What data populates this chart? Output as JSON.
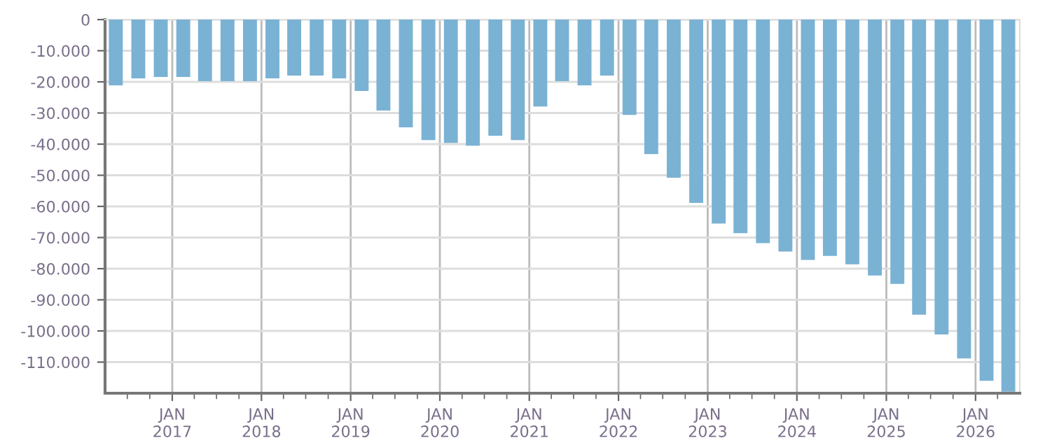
{
  "chart_data": {
    "type": "bar",
    "x": [
      "2016-05-15",
      "2016-08-15",
      "2016-11-15",
      "2017-02-15",
      "2017-05-15",
      "2017-08-15",
      "2017-11-15",
      "2018-02-15",
      "2018-05-15",
      "2018-08-15",
      "2018-11-15",
      "2019-02-15",
      "2019-05-15",
      "2019-08-15",
      "2019-11-15",
      "2020-02-15",
      "2020-05-15",
      "2020-08-15",
      "2020-11-15",
      "2021-02-15",
      "2021-05-15",
      "2021-08-15",
      "2021-11-15",
      "2022-02-15",
      "2022-05-15",
      "2022-08-15",
      "2022-11-15",
      "2023-02-15",
      "2023-05-15",
      "2023-08-15",
      "2023-11-15",
      "2024-02-15",
      "2024-05-15",
      "2024-08-15",
      "2024-11-15",
      "2025-02-15",
      "2025-05-15",
      "2025-08-15",
      "2025-11-15",
      "2026-02-15",
      "2026-05-15"
    ],
    "values": [
      -21100,
      -18900,
      -18400,
      -18400,
      -19800,
      -19800,
      -19800,
      -18900,
      -18000,
      -18000,
      -18900,
      -22900,
      -29200,
      -34600,
      -38700,
      -39600,
      -40500,
      -37300,
      -38700,
      -27900,
      -19800,
      -21100,
      -18000,
      -30600,
      -43200,
      -50800,
      -58900,
      -65500,
      -68600,
      -71800,
      -74500,
      -77200,
      -75900,
      -78600,
      -82200,
      -84900,
      -94800,
      -101100,
      -108800,
      -116000,
      -119500
    ],
    "color": "#7ab2d4",
    "xlim": [
      "2016-04-01",
      "2026-07-01"
    ],
    "xticks": [
      {
        "value": "2016-07-01",
        "label": null
      },
      {
        "value": "2016-10-01",
        "label": null
      },
      {
        "value": "2017-01-01",
        "label": "JAN\n2017"
      },
      {
        "value": "2017-04-01",
        "label": null
      },
      {
        "value": "2017-07-01",
        "label": null
      },
      {
        "value": "2017-10-01",
        "label": null
      },
      {
        "value": "2018-01-01",
        "label": "JAN\n2018"
      },
      {
        "value": "2018-04-01",
        "label": null
      },
      {
        "value": "2018-07-01",
        "label": null
      },
      {
        "value": "2018-10-01",
        "label": null
      },
      {
        "value": "2019-01-01",
        "label": "JAN\n2019"
      },
      {
        "value": "2019-04-01",
        "label": null
      },
      {
        "value": "2019-07-01",
        "label": null
      },
      {
        "value": "2019-10-01",
        "label": null
      },
      {
        "value": "2020-01-01",
        "label": "JAN\n2020"
      },
      {
        "value": "2020-04-01",
        "label": null
      },
      {
        "value": "2020-07-01",
        "label": null
      },
      {
        "value": "2020-10-01",
        "label": null
      },
      {
        "value": "2021-01-01",
        "label": "JAN\n2021"
      },
      {
        "value": "2021-04-01",
        "label": null
      },
      {
        "value": "2021-07-01",
        "label": null
      },
      {
        "value": "2021-10-01",
        "label": null
      },
      {
        "value": "2022-01-01",
        "label": "JAN\n2022"
      },
      {
        "value": "2022-04-01",
        "label": null
      },
      {
        "value": "2022-07-01",
        "label": null
      },
      {
        "value": "2022-10-01",
        "label": null
      },
      {
        "value": "2023-01-01",
        "label": "JAN\n2023"
      },
      {
        "value": "2023-04-01",
        "label": null
      },
      {
        "value": "2023-07-01",
        "label": null
      },
      {
        "value": "2023-10-01",
        "label": null
      },
      {
        "value": "2024-01-01",
        "label": "JAN\n2024"
      },
      {
        "value": "2024-04-01",
        "label": null
      },
      {
        "value": "2024-07-01",
        "label": null
      },
      {
        "value": "2024-10-01",
        "label": null
      },
      {
        "value": "2025-01-01",
        "label": "JAN\n2025"
      },
      {
        "value": "2025-04-01",
        "label": null
      },
      {
        "value": "2025-07-01",
        "label": null
      },
      {
        "value": "2025-10-01",
        "label": null
      },
      {
        "value": "2026-01-01",
        "label": "JAN\n2026"
      },
      {
        "value": "2026-04-01",
        "label": null
      }
    ],
    "ylim": [
      -120000,
      0
    ],
    "yticks": [
      {
        "value": 0,
        "label": "0"
      },
      {
        "value": -10000,
        "label": "-10.000"
      },
      {
        "value": -20000,
        "label": "-20.000"
      },
      {
        "value": -30000,
        "label": "-30.000"
      },
      {
        "value": -40000,
        "label": "-40.000"
      },
      {
        "value": -50000,
        "label": "-50.000"
      },
      {
        "value": -60000,
        "label": "-60.000"
      },
      {
        "value": -70000,
        "label": "-70.000"
      },
      {
        "value": -80000,
        "label": "-80.000"
      },
      {
        "value": -90000,
        "label": "-90.000"
      },
      {
        "value": -100000,
        "label": "-100.000"
      },
      {
        "value": -110000,
        "label": "-110.000"
      }
    ],
    "grid": true
  }
}
